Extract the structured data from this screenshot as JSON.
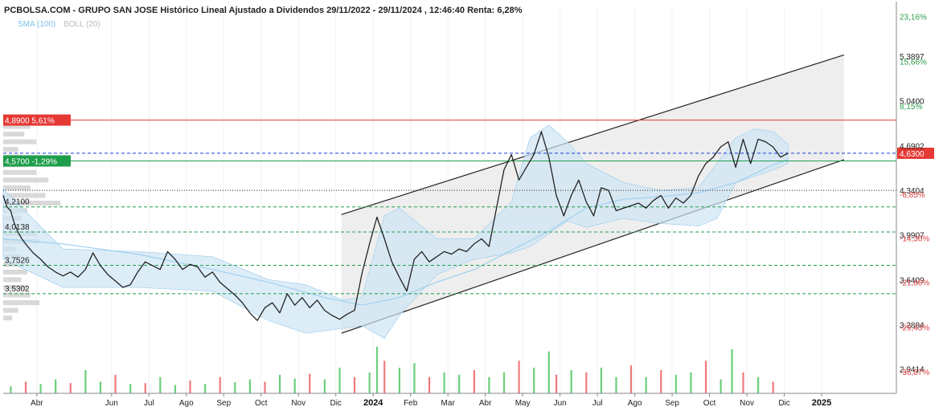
{
  "chart_data": {
    "type": "line",
    "title": "PCBOLSA.COM - GRUPO SAN JOSE Histórico Lineal Ajustado a Dividendos 29/11/2022 - 29/11/2024 , 12:46:40 Renta: 6,28%",
    "legend": {
      "sma": "SMA (100)",
      "boll": "BOLL (20)",
      "sma_color": "#7ec0e8",
      "boll_color": "#bbbbbb"
    },
    "ylim": [
      2.75,
      5.78
    ],
    "y_price_ticks": [
      {
        "v": 5.3897,
        "label": "5,3897"
      },
      {
        "v": 5.04,
        "label": "5,0400"
      },
      {
        "v": 4.6902,
        "label": "4,6902"
      },
      {
        "v": 4.3404,
        "label": "4,3404"
      },
      {
        "v": 3.9907,
        "label": "3,9907"
      },
      {
        "v": 3.6409,
        "label": "3,6409"
      },
      {
        "v": 3.2884,
        "label": "3,2884"
      },
      {
        "v": 2.9414,
        "label": "2,9414"
      }
    ],
    "y_pct_ticks": [
      {
        "v": 5.7,
        "label": "23,16%",
        "color": "#2e9d4a"
      },
      {
        "v": 5.35,
        "label": "15,66%",
        "color": "#2e9d4a"
      },
      {
        "v": 5.0,
        "label": "8,15%",
        "color": "#2e9d4a"
      },
      {
        "v": 4.31,
        "label": "-6,85%",
        "color": "#e04040"
      },
      {
        "v": 3.965,
        "label": "-14,36%",
        "color": "#e04040"
      },
      {
        "v": 3.62,
        "label": "-21,86%",
        "color": "#e04040"
      },
      {
        "v": 3.27,
        "label": "-29,43%",
        "color": "#e04040"
      },
      {
        "v": 2.92,
        "label": "-36,87%",
        "color": "#e04040"
      }
    ],
    "x_labels": [
      {
        "x": 11.3,
        "label": "Abr",
        "bold": false
      },
      {
        "x": 13.3,
        "label": "Jun",
        "bold": false
      },
      {
        "x": 14.3,
        "label": "Jul",
        "bold": false
      },
      {
        "x": 15.3,
        "label": "Ago",
        "bold": false
      },
      {
        "x": 16.3,
        "label": "Sep",
        "bold": false
      },
      {
        "x": 17.3,
        "label": "Oct",
        "bold": false
      },
      {
        "x": 18.3,
        "label": "Nov",
        "bold": false
      },
      {
        "x": 19.3,
        "label": "Dic",
        "bold": false
      },
      {
        "x": 20.3,
        "label": "2024",
        "bold": true
      },
      {
        "x": 21.3,
        "label": "Feb",
        "bold": false
      },
      {
        "x": 22.3,
        "label": "Mar",
        "bold": false
      },
      {
        "x": 23.3,
        "label": "Abr",
        "bold": false
      },
      {
        "x": 24.3,
        "label": "May",
        "bold": false
      },
      {
        "x": 25.3,
        "label": "Jun",
        "bold": false
      },
      {
        "x": 26.3,
        "label": "Jul",
        "bold": false
      },
      {
        "x": 27.3,
        "label": "Ago",
        "bold": false
      },
      {
        "x": 28.3,
        "label": "Sep",
        "bold": false
      },
      {
        "x": 29.3,
        "label": "Oct",
        "bold": false
      },
      {
        "x": 30.3,
        "label": "Nov",
        "bold": false
      },
      {
        "x": 31.3,
        "label": "Dic",
        "bold": false
      },
      {
        "x": 32.3,
        "label": "2025",
        "bold": true
      }
    ],
    "xlim": [
      10.4,
      34.3
    ],
    "price_series": {
      "name": "GRUPO SAN JOSE",
      "color": "#222222",
      "x": [
        10.4,
        10.5,
        10.6,
        10.7,
        10.8,
        10.9,
        11.0,
        11.2,
        11.4,
        11.6,
        11.8,
        12.0,
        12.2,
        12.4,
        12.6,
        12.8,
        13.0,
        13.2,
        13.4,
        13.6,
        13.8,
        14.0,
        14.2,
        14.4,
        14.6,
        14.8,
        15.0,
        15.2,
        15.4,
        15.6,
        15.8,
        16.0,
        16.2,
        16.4,
        16.6,
        16.8,
        17.0,
        17.2,
        17.4,
        17.6,
        17.8,
        18.0,
        18.2,
        18.4,
        18.6,
        18.8,
        19.0,
        19.2,
        19.4,
        19.6,
        19.8,
        20.0,
        20.2,
        20.4,
        20.6,
        20.8,
        21.0,
        21.2,
        21.4,
        21.6,
        21.8,
        22.0,
        22.2,
        22.4,
        22.6,
        22.8,
        23.0,
        23.2,
        23.4,
        23.6,
        23.8,
        24.0,
        24.2,
        24.4,
        24.6,
        24.8,
        25.0,
        25.2,
        25.4,
        25.6,
        25.8,
        26.0,
        26.2,
        26.4,
        26.6,
        26.8,
        27.0,
        27.2,
        27.4,
        27.6,
        27.8,
        28.0,
        28.2,
        28.4,
        28.6,
        28.8,
        29.0,
        29.2,
        29.4,
        29.6,
        29.8,
        30.0,
        30.2,
        30.4,
        30.6,
        30.8,
        31.0,
        31.2,
        31.4
      ],
      "y": [
        4.3,
        4.21,
        4.18,
        4.08,
        4.01,
        3.96,
        3.92,
        3.85,
        3.8,
        3.74,
        3.7,
        3.67,
        3.7,
        3.66,
        3.72,
        3.85,
        3.75,
        3.68,
        3.63,
        3.58,
        3.6,
        3.7,
        3.78,
        3.75,
        3.72,
        3.86,
        3.8,
        3.72,
        3.76,
        3.74,
        3.66,
        3.7,
        3.62,
        3.57,
        3.52,
        3.46,
        3.38,
        3.32,
        3.42,
        3.46,
        3.38,
        3.53,
        3.44,
        3.5,
        3.42,
        3.48,
        3.4,
        3.36,
        3.33,
        3.37,
        3.4,
        3.69,
        3.92,
        4.13,
        3.96,
        3.78,
        3.66,
        3.55,
        3.8,
        3.86,
        3.78,
        3.82,
        3.86,
        3.84,
        3.88,
        3.86,
        3.92,
        3.96,
        3.9,
        4.2,
        4.5,
        4.62,
        4.42,
        4.52,
        4.62,
        4.8,
        4.6,
        4.3,
        4.14,
        4.3,
        4.42,
        4.25,
        4.14,
        4.36,
        4.34,
        4.18,
        4.2,
        4.22,
        4.24,
        4.2,
        4.26,
        4.3,
        4.2,
        4.28,
        4.24,
        4.3,
        4.45,
        4.55,
        4.6,
        4.68,
        4.72,
        4.52,
        4.74,
        4.55,
        4.74,
        4.72,
        4.68,
        4.6,
        4.63
      ]
    },
    "sma_series": {
      "name": "SMA (100)",
      "color": "#9fd0ee",
      "x": [
        10.4,
        12.0,
        14.0,
        16.0,
        17.5,
        19.0,
        20.0,
        21.0,
        22.0,
        23.0,
        24.0,
        25.0,
        26.0,
        27.0,
        28.0,
        29.0,
        30.0,
        31.0,
        31.4
      ],
      "y": [
        3.96,
        3.92,
        3.84,
        3.72,
        3.62,
        3.5,
        3.44,
        3.5,
        3.62,
        3.72,
        3.87,
        4.02,
        4.2,
        4.27,
        4.29,
        4.32,
        4.4,
        4.54,
        4.58
      ]
    },
    "boll_band": {
      "name": "BOLL (20)",
      "fill": "#cfe6f5",
      "x": [
        10.4,
        12.0,
        14.0,
        16.0,
        17.5,
        18.5,
        19.5,
        20.0,
        20.6,
        21.0,
        21.5,
        22.0,
        23.0,
        24.0,
        24.5,
        25.0,
        25.5,
        26.0,
        27.0,
        28.0,
        29.0,
        29.5,
        30.0,
        30.5,
        31.0,
        31.4
      ],
      "upper": [
        4.35,
        3.88,
        3.86,
        3.82,
        3.64,
        3.6,
        3.48,
        3.5,
        4.14,
        4.2,
        4.08,
        3.96,
        3.96,
        4.25,
        4.75,
        4.85,
        4.72,
        4.55,
        4.4,
        4.34,
        4.36,
        4.55,
        4.75,
        4.82,
        4.8,
        4.7
      ],
      "lower": [
        3.8,
        3.58,
        3.58,
        3.55,
        3.32,
        3.22,
        3.26,
        3.28,
        3.18,
        3.36,
        3.52,
        3.68,
        3.8,
        3.85,
        3.9,
        4.0,
        4.1,
        4.05,
        4.12,
        4.08,
        4.06,
        4.12,
        4.4,
        4.45,
        4.5,
        4.55
      ]
    },
    "channel": {
      "fill": "#eeeeee",
      "stroke": "#222222",
      "x_start": 19.45,
      "x_end": 32.9,
      "upper_start": 4.15,
      "upper_end": 5.4,
      "lower_start": 3.22,
      "lower_end": 4.58
    },
    "levels": [
      {
        "v": 4.89,
        "label": "4,8900  5,61%",
        "color": "#e53935",
        "style": "solid",
        "badge": true,
        "text_color": "#ffffff"
      },
      {
        "v": 4.63,
        "label": "4,6300",
        "color": "#1a3fd6",
        "style": "dashed",
        "badge": true,
        "badge_color": "#e53935",
        "badge_side": "right",
        "text_color": "#ffffff"
      },
      {
        "v": 4.57,
        "label": "4,5700  -1,29%",
        "color": "#1e9e4a",
        "style": "solid",
        "badge": true,
        "text_color": "#ffffff"
      },
      {
        "v": 4.34,
        "label": "",
        "color": "#222222",
        "style": "dotted",
        "badge": false
      },
      {
        "v": 4.21,
        "label": "4,2100",
        "color": "#1e9e4a",
        "style": "dashed",
        "badge": false
      },
      {
        "v": 4.0138,
        "label": "4,0138",
        "color": "#1e9e4a",
        "style": "dashed",
        "badge": false
      },
      {
        "v": 3.7526,
        "label": "3,7526",
        "color": "#1e9e4a",
        "style": "dashed",
        "badge": false
      },
      {
        "v": 3.5302,
        "label": "3,5302",
        "color": "#1e9e4a",
        "style": "dashed",
        "badge": false
      }
    ],
    "volume_profile": {
      "color": "#cccccc",
      "bins": [
        {
          "y": 4.84,
          "w": 0.45
        },
        {
          "y": 4.78,
          "w": 0.35
        },
        {
          "y": 4.72,
          "w": 0.55
        },
        {
          "y": 4.66,
          "w": 0.25
        },
        {
          "y": 4.6,
          "w": 0.3
        },
        {
          "y": 4.54,
          "w": 0.4
        },
        {
          "y": 4.48,
          "w": 0.55
        },
        {
          "y": 4.42,
          "w": 0.75
        },
        {
          "y": 4.36,
          "w": 0.45
        },
        {
          "y": 4.3,
          "w": 0.7
        },
        {
          "y": 4.24,
          "w": 0.95
        },
        {
          "y": 4.18,
          "w": 0.4
        },
        {
          "y": 4.12,
          "w": 0.3
        },
        {
          "y": 4.06,
          "w": 0.25
        },
        {
          "y": 4.0,
          "w": 0.55
        },
        {
          "y": 3.94,
          "w": 0.6
        },
        {
          "y": 3.88,
          "w": 0.2
        },
        {
          "y": 3.82,
          "w": 0.3
        },
        {
          "y": 3.76,
          "w": 0.35
        },
        {
          "y": 3.7,
          "w": 0.4
        },
        {
          "y": 3.64,
          "w": 0.3
        },
        {
          "y": 3.58,
          "w": 0.4
        },
        {
          "y": 3.52,
          "w": 0.45
        },
        {
          "y": 3.46,
          "w": 0.6
        },
        {
          "y": 3.4,
          "w": 0.25
        },
        {
          "y": 3.34,
          "w": 0.15
        }
      ]
    },
    "volume": {
      "color_up": "#6ccf7a",
      "color_down": "#ef7a7a",
      "x": [
        10.6,
        11.0,
        11.4,
        11.8,
        12.2,
        12.6,
        13.0,
        13.4,
        13.8,
        14.2,
        14.6,
        15.0,
        15.4,
        15.8,
        16.2,
        16.6,
        17.0,
        17.4,
        17.8,
        18.2,
        18.6,
        19.0,
        19.4,
        19.8,
        20.2,
        20.4,
        20.6,
        21.0,
        21.4,
        21.8,
        22.2,
        22.6,
        23.0,
        23.4,
        23.8,
        24.2,
        24.6,
        25.0,
        25.2,
        25.6,
        26.0,
        26.4,
        26.8,
        27.2,
        27.6,
        28.0,
        28.4,
        28.8,
        29.2,
        29.6,
        29.9,
        30.2,
        30.6,
        31.0
      ],
      "v": [
        0.15,
        0.25,
        0.2,
        0.3,
        0.22,
        0.5,
        0.25,
        0.4,
        0.2,
        0.22,
        0.35,
        0.18,
        0.28,
        0.2,
        0.35,
        0.24,
        0.3,
        0.25,
        0.4,
        0.32,
        0.42,
        0.3,
        0.55,
        0.35,
        0.45,
        1.0,
        0.7,
        0.55,
        0.65,
        0.35,
        0.45,
        0.4,
        0.5,
        0.35,
        0.45,
        0.7,
        0.55,
        0.9,
        0.4,
        0.5,
        0.45,
        0.55,
        0.35,
        0.6,
        0.35,
        0.5,
        0.4,
        0.45,
        0.7,
        0.3,
        0.95,
        0.45,
        0.35,
        0.25
      ],
      "up": [
        true,
        false,
        true,
        true,
        false,
        true,
        true,
        false,
        true,
        false,
        true,
        true,
        false,
        true,
        false,
        true,
        true,
        false,
        true,
        true,
        false,
        true,
        true,
        false,
        true,
        true,
        false,
        true,
        true,
        false,
        true,
        true,
        false,
        true,
        true,
        false,
        true,
        true,
        false,
        true,
        false,
        true,
        true,
        false,
        true,
        false,
        true,
        true,
        false,
        true,
        true,
        false,
        true,
        false
      ]
    }
  }
}
